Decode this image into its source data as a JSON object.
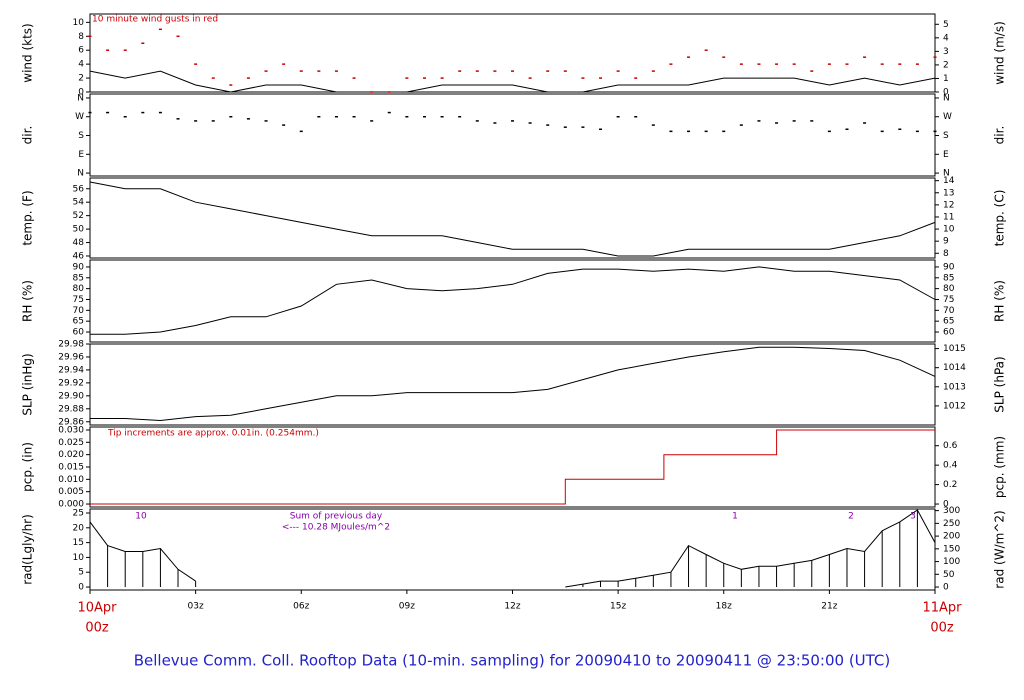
{
  "chart_data": {
    "title": "Bellevue Comm. Coll. Rooftop Data (10-min. sampling) for 20090410  to  20090411 @ 23:50:00  (UTC)",
    "xlim": [
      0,
      24
    ],
    "xticks": [
      {
        "value": 0,
        "label": "00z",
        "date": "10Apr"
      },
      {
        "value": 3,
        "label": "03z"
      },
      {
        "value": 6,
        "label": "06z"
      },
      {
        "value": 9,
        "label": "09z"
      },
      {
        "value": 12,
        "label": "12z"
      },
      {
        "value": 15,
        "label": "15z"
      },
      {
        "value": 18,
        "label": "18z"
      },
      {
        "value": 21,
        "label": "21z"
      },
      {
        "value": 24,
        "label": "00z",
        "date": "11Apr"
      }
    ],
    "panels": [
      {
        "type": "line",
        "ylabel": "wind (kts)",
        "y2label": "wind (m/s)",
        "ylim": [
          0,
          11.2
        ],
        "yticks": [
          0,
          2,
          4,
          6,
          8,
          10
        ],
        "y2lim": [
          0,
          5.76
        ],
        "y2ticks": [
          0,
          1,
          2,
          3,
          4,
          5
        ],
        "annotations": [
          "10  minute wind gusts in red"
        ],
        "series": [
          {
            "type": "line",
            "color": "#000000",
            "x": [
              0,
              1,
              2,
              3,
              4,
              5,
              6,
              7,
              8,
              9,
              10,
              11,
              12,
              13,
              14,
              15,
              16,
              17,
              18,
              19,
              20,
              21,
              22,
              23,
              24
            ],
            "values": [
              3,
              2,
              3,
              1,
              0,
              1,
              1,
              0,
              0,
              0,
              1,
              1,
              1,
              0,
              0,
              1,
              1,
              1,
              2,
              2,
              2,
              1,
              2,
              1,
              2
            ]
          },
          {
            "type": "scatter",
            "color": "#cc0000",
            "x": [
              0,
              0.5,
              1,
              1.5,
              2,
              2.5,
              3,
              3.5,
              4,
              4.5,
              5,
              5.5,
              6,
              6.5,
              7,
              7.5,
              8,
              8.5,
              9,
              9.5,
              10,
              10.5,
              11,
              11.5,
              12,
              12.5,
              13,
              13.5,
              14,
              14.5,
              15,
              15.5,
              16,
              16.5,
              17,
              17.5,
              18,
              18.5,
              19,
              19.5,
              20,
              20.5,
              21,
              21.5,
              22,
              22.5,
              23,
              23.5,
              24
            ],
            "values": [
              8,
              6,
              6,
              7,
              9,
              8,
              4,
              2,
              1,
              2,
              3,
              4,
              3,
              3,
              3,
              2,
              0,
              0,
              2,
              2,
              2,
              3,
              3,
              3,
              3,
              2,
              3,
              3,
              2,
              2,
              3,
              2,
              3,
              4,
              5,
              6,
              5,
              4,
              4,
              4,
              4,
              3,
              4,
              4,
              5,
              4,
              4,
              4,
              5
            ]
          }
        ]
      },
      {
        "type": "scatter",
        "ylabel": "dir.",
        "y2label": "dir.",
        "ylim": [
          -14,
          379
        ],
        "yticks": [
          {
            "value": 360,
            "label": "N"
          },
          {
            "value": 270,
            "label": "W"
          },
          {
            "value": 180,
            "label": "S"
          },
          {
            "value": 90,
            "label": "E"
          },
          {
            "value": 0,
            "label": "N"
          }
        ],
        "y2lim": [
          -14,
          379
        ],
        "y2ticks": [
          {
            "value": 360,
            "label": "N"
          },
          {
            "value": 270,
            "label": "W"
          },
          {
            "value": 180,
            "label": "S"
          },
          {
            "value": 90,
            "label": "E"
          },
          {
            "value": 0,
            "label": "N"
          }
        ],
        "series": [
          {
            "type": "scatter",
            "color": "#000000",
            "x": [
              0,
              0.5,
              1,
              1.5,
              2,
              2.5,
              3,
              3.5,
              4,
              4.5,
              5,
              5.5,
              6,
              6.5,
              7,
              7.5,
              8,
              8.5,
              9,
              9.5,
              10,
              10.5,
              11,
              11.5,
              12,
              12.5,
              13,
              13.5,
              14,
              14.5,
              15,
              15.5,
              16,
              16.5,
              17,
              17.5,
              18,
              18.5,
              19,
              19.5,
              20,
              20.5,
              21,
              21.5,
              22,
              22.5,
              23,
              23.5,
              24
            ],
            "values": [
              290,
              290,
              270,
              290,
              290,
              260,
              250,
              250,
              270,
              260,
              250,
              230,
              200,
              270,
              270,
              270,
              250,
              290,
              270,
              270,
              270,
              270,
              250,
              240,
              250,
              240,
              230,
              220,
              220,
              210,
              270,
              270,
              230,
              200,
              200,
              200,
              200,
              230,
              250,
              240,
              250,
              250,
              200,
              210,
              240,
              200,
              210,
              200,
              200
            ]
          }
        ]
      },
      {
        "type": "line",
        "ylabel": "temp. (F)",
        "y2label": "temp. (C)",
        "ylim": [
          45.7,
          57.6
        ],
        "yticks": [
          46,
          48,
          50,
          52,
          54,
          56
        ],
        "y2lim": [
          7.61,
          14.22
        ],
        "y2ticks": [
          8,
          9,
          10,
          11,
          12,
          13,
          14
        ],
        "series": [
          {
            "type": "line",
            "color": "#000000",
            "x": [
              0,
              1,
              2,
              3,
              4,
              5,
              6,
              7,
              8,
              9,
              10,
              11,
              12,
              13,
              14,
              15,
              16,
              17,
              18,
              19,
              20,
              21,
              22,
              23,
              24
            ],
            "values": [
              57,
              56,
              56,
              54,
              53,
              52,
              51,
              50,
              49,
              49,
              49,
              48,
              47,
              47,
              47,
              46,
              46,
              47,
              47,
              47,
              47,
              47,
              48,
              49,
              51
            ]
          }
        ]
      },
      {
        "type": "line",
        "ylabel": "RH (%)",
        "y2label": "RH (%)",
        "ylim": [
          55.4,
          93.2
        ],
        "yticks": [
          60,
          65,
          70,
          75,
          80,
          85,
          90
        ],
        "y2lim": [
          55.4,
          93.2
        ],
        "y2ticks": [
          60,
          65,
          70,
          75,
          80,
          85,
          90
        ],
        "series": [
          {
            "type": "line",
            "color": "#000000",
            "x": [
              0,
              1,
              2,
              3,
              4,
              5,
              6,
              7,
              8,
              9,
              10,
              11,
              12,
              13,
              14,
              15,
              16,
              17,
              18,
              19,
              20,
              21,
              22,
              23,
              24
            ],
            "values": [
              59,
              59,
              60,
              63,
              67,
              67,
              72,
              82,
              84,
              80,
              79,
              80,
              82,
              87,
              89,
              89,
              88,
              89,
              88,
              90,
              88,
              88,
              86,
              84,
              75
            ]
          }
        ]
      },
      {
        "type": "line",
        "ylabel": "SLP (inHg)",
        "y2label": "SLP (hPa)",
        "ylim": [
          29.855,
          29.98
        ],
        "yticks": [
          29.86,
          29.88,
          {
            "value": 29.9,
            "label": "29.90"
          },
          29.92,
          29.94,
          29.96,
          29.98
        ],
        "y2lim": [
          1011.0,
          1015.24
        ],
        "y2ticks": [
          1012,
          1013,
          1014,
          1015
        ],
        "series": [
          {
            "type": "line",
            "color": "#000000",
            "x": [
              0,
              1,
              2,
              3,
              4,
              5,
              6,
              7,
              8,
              9,
              10,
              11,
              12,
              13,
              14,
              15,
              16,
              17,
              18,
              19,
              20,
              21,
              22,
              23,
              24
            ],
            "values": [
              29.865,
              29.865,
              29.862,
              29.868,
              29.87,
              29.88,
              29.89,
              29.9,
              29.9,
              29.905,
              29.905,
              29.905,
              29.905,
              29.91,
              29.925,
              29.94,
              29.95,
              29.96,
              29.968,
              29.975,
              29.975,
              29.973,
              29.97,
              29.955,
              29.93
            ]
          }
        ]
      },
      {
        "type": "line",
        "ylabel": "pcp. (in)",
        "y2label": "pcp. (mm)",
        "ylim": [
          -0.0012,
          0.0312
        ],
        "yticks": [
          {
            "value": 0,
            "label": "0.000"
          },
          0.005,
          {
            "value": 0.01,
            "label": "0.010"
          },
          0.015,
          {
            "value": 0.02,
            "label": "0.020"
          },
          0.025,
          {
            "value": 0.03,
            "label": "0.030"
          }
        ],
        "y2lim": [
          -0.0305,
          0.7925
        ],
        "y2ticks": [
          0,
          0.2,
          0.4,
          0.6
        ],
        "annotations": [
          "Tip increments are approx. 0.01in. (0.254mm.)"
        ],
        "series": [
          {
            "type": "line",
            "color": "#cc0000",
            "x": [
              0,
              13.5,
              13.5,
              16.3,
              16.3,
              19.5,
              19.5,
              24
            ],
            "values": [
              0,
              0,
              0.01,
              0.01,
              0.02,
              0.02,
              0.03,
              0.03
            ]
          }
        ]
      },
      {
        "type": "bar",
        "ylabel": "rad(Lgly/hr)",
        "y2label": "rad (W/m^2)",
        "ylim": [
          -1,
          26.35
        ],
        "yticks": [
          0,
          5,
          10,
          15,
          20,
          25
        ],
        "y2lim": [
          -11.63,
          306.4
        ],
        "y2ticks": [
          0,
          50,
          100,
          150,
          200,
          250,
          300
        ],
        "annotations": [
          "10",
          "Sum of previous day",
          "<--- 10.28 MJoules/m^2",
          "1",
          "2",
          "3"
        ],
        "series": [
          {
            "type": "bar",
            "color": "#000000",
            "x": [
              0,
              0.5,
              1,
              1.5,
              2,
              2.5,
              3,
              3.5,
              4,
              4.5,
              5,
              5.5,
              6,
              6.5,
              7,
              7.5,
              8,
              8.5,
              9,
              9.5,
              10,
              10.5,
              11,
              11.5,
              12,
              12.5,
              13,
              13.5,
              14,
              14.5,
              15,
              15.5,
              16,
              16.5,
              17,
              17.5,
              18,
              18.5,
              19,
              19.5,
              20,
              20.5,
              21,
              21.5,
              22,
              22.5,
              23,
              23.5,
              24
            ],
            "values": [
              22,
              14,
              12,
              12,
              13,
              6,
              2,
              null,
              null,
              null,
              null,
              null,
              null,
              null,
              null,
              null,
              null,
              null,
              null,
              null,
              null,
              null,
              null,
              null,
              null,
              null,
              null,
              0,
              1,
              2,
              2,
              3,
              4,
              5,
              14,
              11,
              8,
              6,
              7,
              7,
              8,
              9,
              11,
              13,
              12,
              19,
              22,
              26,
              15
            ]
          }
        ]
      }
    ]
  }
}
